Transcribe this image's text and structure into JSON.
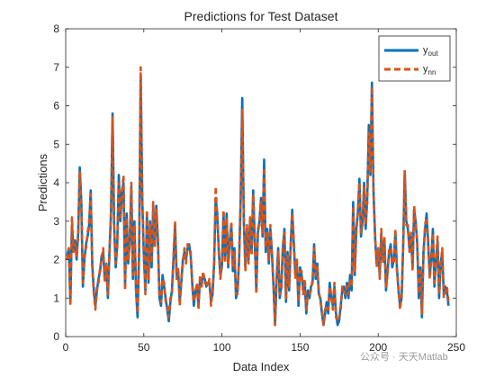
{
  "chart_data": {
    "type": "line",
    "title": "Predictions for Test Dataset",
    "xlabel": "Data Index",
    "ylabel": "Predictions",
    "xlim": [
      0,
      250
    ],
    "ylim": [
      0,
      8
    ],
    "xticks": [
      0,
      50,
      100,
      150,
      200,
      250
    ],
    "yticks": [
      0,
      1,
      2,
      3,
      4,
      5,
      6,
      7,
      8
    ],
    "legend_location": "top-right",
    "grid": false,
    "series": [
      {
        "name_main": "y",
        "name_sub": "out",
        "color": "#0072BD",
        "style": "solid",
        "values": [
          2.1,
          2.3,
          0.9,
          2.9,
          2.3,
          2.5,
          2.0,
          2.7,
          4.4,
          3.5,
          1.3,
          2.0,
          2.4,
          2.6,
          2.9,
          3.8,
          1.9,
          1.2,
          0.8,
          1.2,
          1.5,
          1.7,
          2.1,
          2.2,
          1.5,
          1.8,
          1.0,
          2.2,
          3.2,
          5.8,
          2.9,
          1.8,
          2.4,
          4.2,
          3.0,
          3.8,
          4.0,
          1.3,
          3.2,
          1.9,
          2.5,
          3.9,
          1.5,
          3.0,
          1.2,
          0.5,
          2.2,
          6.8,
          3.6,
          2.1,
          1.2,
          3.2,
          1.4,
          3.0,
          1.8,
          3.4,
          2.4,
          3.4,
          2.5,
          1.0,
          0.8,
          1.6,
          1.3,
          1.0,
          0.7,
          0.4,
          0.9,
          1.2,
          2.0,
          2.9,
          1.6,
          1.7,
          0.9,
          1.4,
          2.0,
          2.2,
          2.0,
          2.3,
          2.4,
          2.1,
          1.4,
          0.8,
          1.2,
          1.3,
          0.8,
          1.5,
          1.4,
          1.6,
          1.5,
          1.3,
          1.4,
          1.4,
          0.9,
          1.1,
          1.9,
          3.6,
          3.2,
          2.2,
          1.6,
          1.8,
          3.2,
          2.0,
          3.2,
          1.8,
          2.5,
          2.9,
          1.7,
          2.3,
          1.0,
          1.2,
          2.0,
          3.6,
          6.2,
          3.0,
          1.8,
          2.8,
          2.0,
          3.0,
          2.2,
          3.8,
          2.5,
          1.2,
          2.7,
          3.0,
          3.6,
          2.6,
          4.6,
          2.2,
          2.8,
          1.9,
          2.8,
          2.2,
          1.3,
          0.3,
          1.5,
          2.3,
          1.0,
          1.3,
          2.3,
          2.8,
          0.9,
          2.2,
          1.2,
          2.4,
          3.3,
          2.4,
          1.6,
          1.9,
          0.8,
          1.8,
          1.6,
          1.2,
          1.4,
          0.6,
          1.2,
          1.0,
          1.3,
          1.4,
          2.4,
          1.5,
          1.9,
          1.1,
          1.0,
          0.6,
          0.3,
          0.6,
          0.9,
          0.6,
          1.4,
          1.0,
          0.8,
          1.3,
          0.6,
          0.3,
          0.4,
          0.8,
          1.2,
          1.3,
          1.0,
          1.4,
          1.0,
          1.6,
          1.2,
          3.5,
          1.6,
          2.8,
          3.2,
          4.1,
          2.6,
          3.0,
          4.0,
          2.8,
          3.6,
          5.5,
          4.2,
          6.6,
          3.8,
          2.6,
          1.9,
          2.2,
          1.6,
          2.7,
          2.0,
          2.5,
          1.2,
          1.7,
          2.2,
          2.4,
          1.8,
          2.0,
          2.7,
          1.8,
          1.2,
          0.8,
          1.0,
          2.4,
          4.3,
          3.0,
          2.8,
          2.3,
          2.6,
          1.8,
          3.3,
          3.0,
          2.4,
          1.0,
          1.8,
          0.5,
          2.2,
          2.8,
          3.2,
          2.4,
          1.6,
          2.0,
          2.8,
          1.3,
          2.0,
          2.5,
          1.0,
          1.9,
          2.2,
          1.1,
          1.3,
          1.2,
          0.8
        ]
      },
      {
        "name_main": "y",
        "name_sub": "nn",
        "color": "#D95319",
        "style": "dashed",
        "values": [
          2.0,
          2.3,
          0.8,
          3.1,
          2.2,
          2.4,
          2.1,
          2.6,
          4.3,
          3.4,
          1.4,
          2.1,
          2.3,
          2.7,
          3.0,
          3.7,
          1.8,
          1.1,
          0.7,
          1.3,
          1.4,
          1.8,
          2.0,
          2.3,
          1.4,
          1.9,
          1.1,
          2.1,
          3.3,
          5.7,
          2.8,
          1.9,
          2.3,
          4.0,
          3.1,
          3.7,
          4.2,
          1.2,
          3.1,
          2.0,
          2.4,
          4.0,
          1.6,
          2.9,
          1.3,
          0.6,
          2.3,
          7.0,
          3.5,
          2.2,
          1.1,
          3.3,
          1.5,
          2.9,
          1.9,
          3.5,
          2.3,
          3.3,
          2.6,
          1.1,
          0.9,
          1.5,
          1.4,
          0.9,
          0.8,
          0.5,
          1.0,
          1.1,
          2.1,
          3.0,
          1.5,
          1.8,
          0.8,
          1.5,
          1.9,
          2.3,
          1.9,
          2.4,
          2.3,
          2.2,
          1.3,
          0.9,
          1.1,
          1.4,
          0.7,
          1.6,
          1.3,
          1.7,
          1.4,
          1.4,
          1.3,
          1.5,
          0.8,
          1.2,
          2.0,
          3.9,
          3.1,
          2.3,
          1.5,
          1.9,
          3.3,
          1.9,
          3.1,
          1.9,
          2.4,
          3.0,
          1.8,
          2.2,
          1.1,
          1.1,
          2.1,
          3.5,
          5.9,
          3.1,
          1.7,
          2.9,
          1.9,
          3.1,
          2.1,
          3.7,
          2.6,
          1.1,
          2.8,
          2.9,
          3.5,
          2.7,
          4.4,
          2.3,
          2.7,
          2.0,
          2.9,
          2.1,
          1.4,
          0.3,
          1.6,
          2.2,
          1.1,
          1.2,
          2.4,
          2.7,
          1.0,
          2.1,
          1.3,
          2.3,
          3.2,
          2.5,
          1.5,
          2.0,
          0.9,
          1.7,
          1.7,
          1.1,
          1.5,
          0.7,
          1.1,
          1.1,
          1.2,
          1.5,
          2.3,
          1.6,
          1.8,
          1.2,
          0.9,
          0.7,
          0.3,
          0.7,
          0.8,
          0.7,
          1.3,
          1.1,
          0.7,
          1.4,
          0.5,
          0.4,
          0.5,
          0.7,
          1.3,
          1.2,
          1.1,
          1.3,
          1.1,
          1.5,
          1.3,
          3.4,
          1.7,
          2.7,
          3.3,
          4.0,
          2.7,
          2.9,
          3.9,
          2.9,
          3.5,
          5.3,
          4.3,
          6.5,
          3.7,
          2.7,
          1.8,
          2.3,
          1.5,
          2.8,
          1.9,
          2.6,
          1.3,
          1.6,
          2.3,
          2.3,
          1.9,
          1.9,
          2.8,
          1.7,
          1.3,
          0.7,
          1.1,
          2.3,
          4.3,
          2.9,
          2.9,
          2.2,
          2.7,
          1.7,
          3.4,
          2.9,
          2.5,
          1.1,
          1.7,
          0.6,
          2.1,
          2.9,
          3.1,
          2.5,
          1.5,
          2.1,
          2.7,
          1.4,
          1.9,
          2.6,
          1.1,
          1.8,
          2.3,
          1.0,
          1.2,
          1.3,
          0.9
        ]
      }
    ]
  },
  "watermark_text": "公众号 · 天天Matlab"
}
